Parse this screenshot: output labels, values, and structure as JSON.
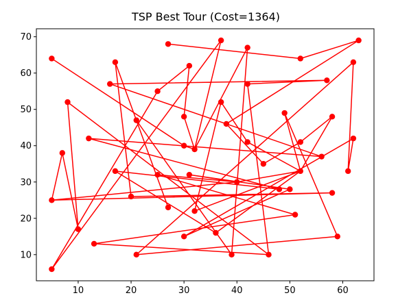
{
  "chart_data": {
    "type": "line",
    "title": "TSP Best Tour (Cost=1364)",
    "xlabel": "",
    "ylabel": "",
    "xlim": [
      2.1,
      65.9
    ],
    "ylim": [
      2.8,
      72.2
    ],
    "x_ticks": [
      10,
      20,
      30,
      40,
      50,
      60
    ],
    "y_ticks": [
      10,
      20,
      30,
      40,
      50,
      60,
      70
    ],
    "grid": false,
    "legend": "none",
    "color": "#ff0000",
    "series": [
      {
        "marker": "circle",
        "closed": true,
        "points": [
          [
            5,
            64
          ],
          [
            30,
            40
          ],
          [
            32,
            39
          ],
          [
            30,
            48
          ],
          [
            31,
            62
          ],
          [
            25,
            55
          ],
          [
            5,
            6
          ],
          [
            37,
            69
          ],
          [
            32,
            39
          ],
          [
            42,
            67
          ],
          [
            39,
            10
          ],
          [
            21,
            47
          ],
          [
            27,
            23
          ],
          [
            17,
            63
          ],
          [
            20,
            26
          ],
          [
            58,
            27
          ],
          [
            5,
            25
          ],
          [
            40,
            30
          ],
          [
            31,
            32
          ],
          [
            50,
            28
          ],
          [
            30,
            15
          ],
          [
            62,
            42
          ],
          [
            61,
            33
          ],
          [
            62,
            63
          ],
          [
            21,
            10
          ],
          [
            59,
            15
          ],
          [
            49,
            49
          ],
          [
            52,
            33
          ],
          [
            36,
            16
          ],
          [
            17,
            33
          ],
          [
            48,
            28
          ],
          [
            12,
            42
          ],
          [
            56,
            37
          ],
          [
            16,
            57
          ],
          [
            57,
            58
          ],
          [
            42,
            57
          ],
          [
            46,
            10
          ],
          [
            8,
            52
          ],
          [
            10,
            17
          ],
          [
            7,
            38
          ],
          [
            5,
            25
          ]
        ]
      },
      {
        "marker": "circle",
        "closed": false,
        "points": [
          [
            27,
            68
          ],
          [
            52,
            64
          ],
          [
            63,
            69
          ],
          [
            38,
            46
          ],
          [
            45,
            35
          ],
          [
            52,
            41
          ],
          [
            58,
            48
          ],
          [
            52,
            33
          ],
          [
            32,
            22
          ],
          [
            37,
            52
          ],
          [
            42,
            41
          ],
          [
            52,
            33
          ],
          [
            40,
            30
          ],
          [
            25,
            32
          ],
          [
            51,
            21
          ],
          [
            13,
            13
          ],
          [
            46,
            10
          ]
        ]
      }
    ]
  }
}
